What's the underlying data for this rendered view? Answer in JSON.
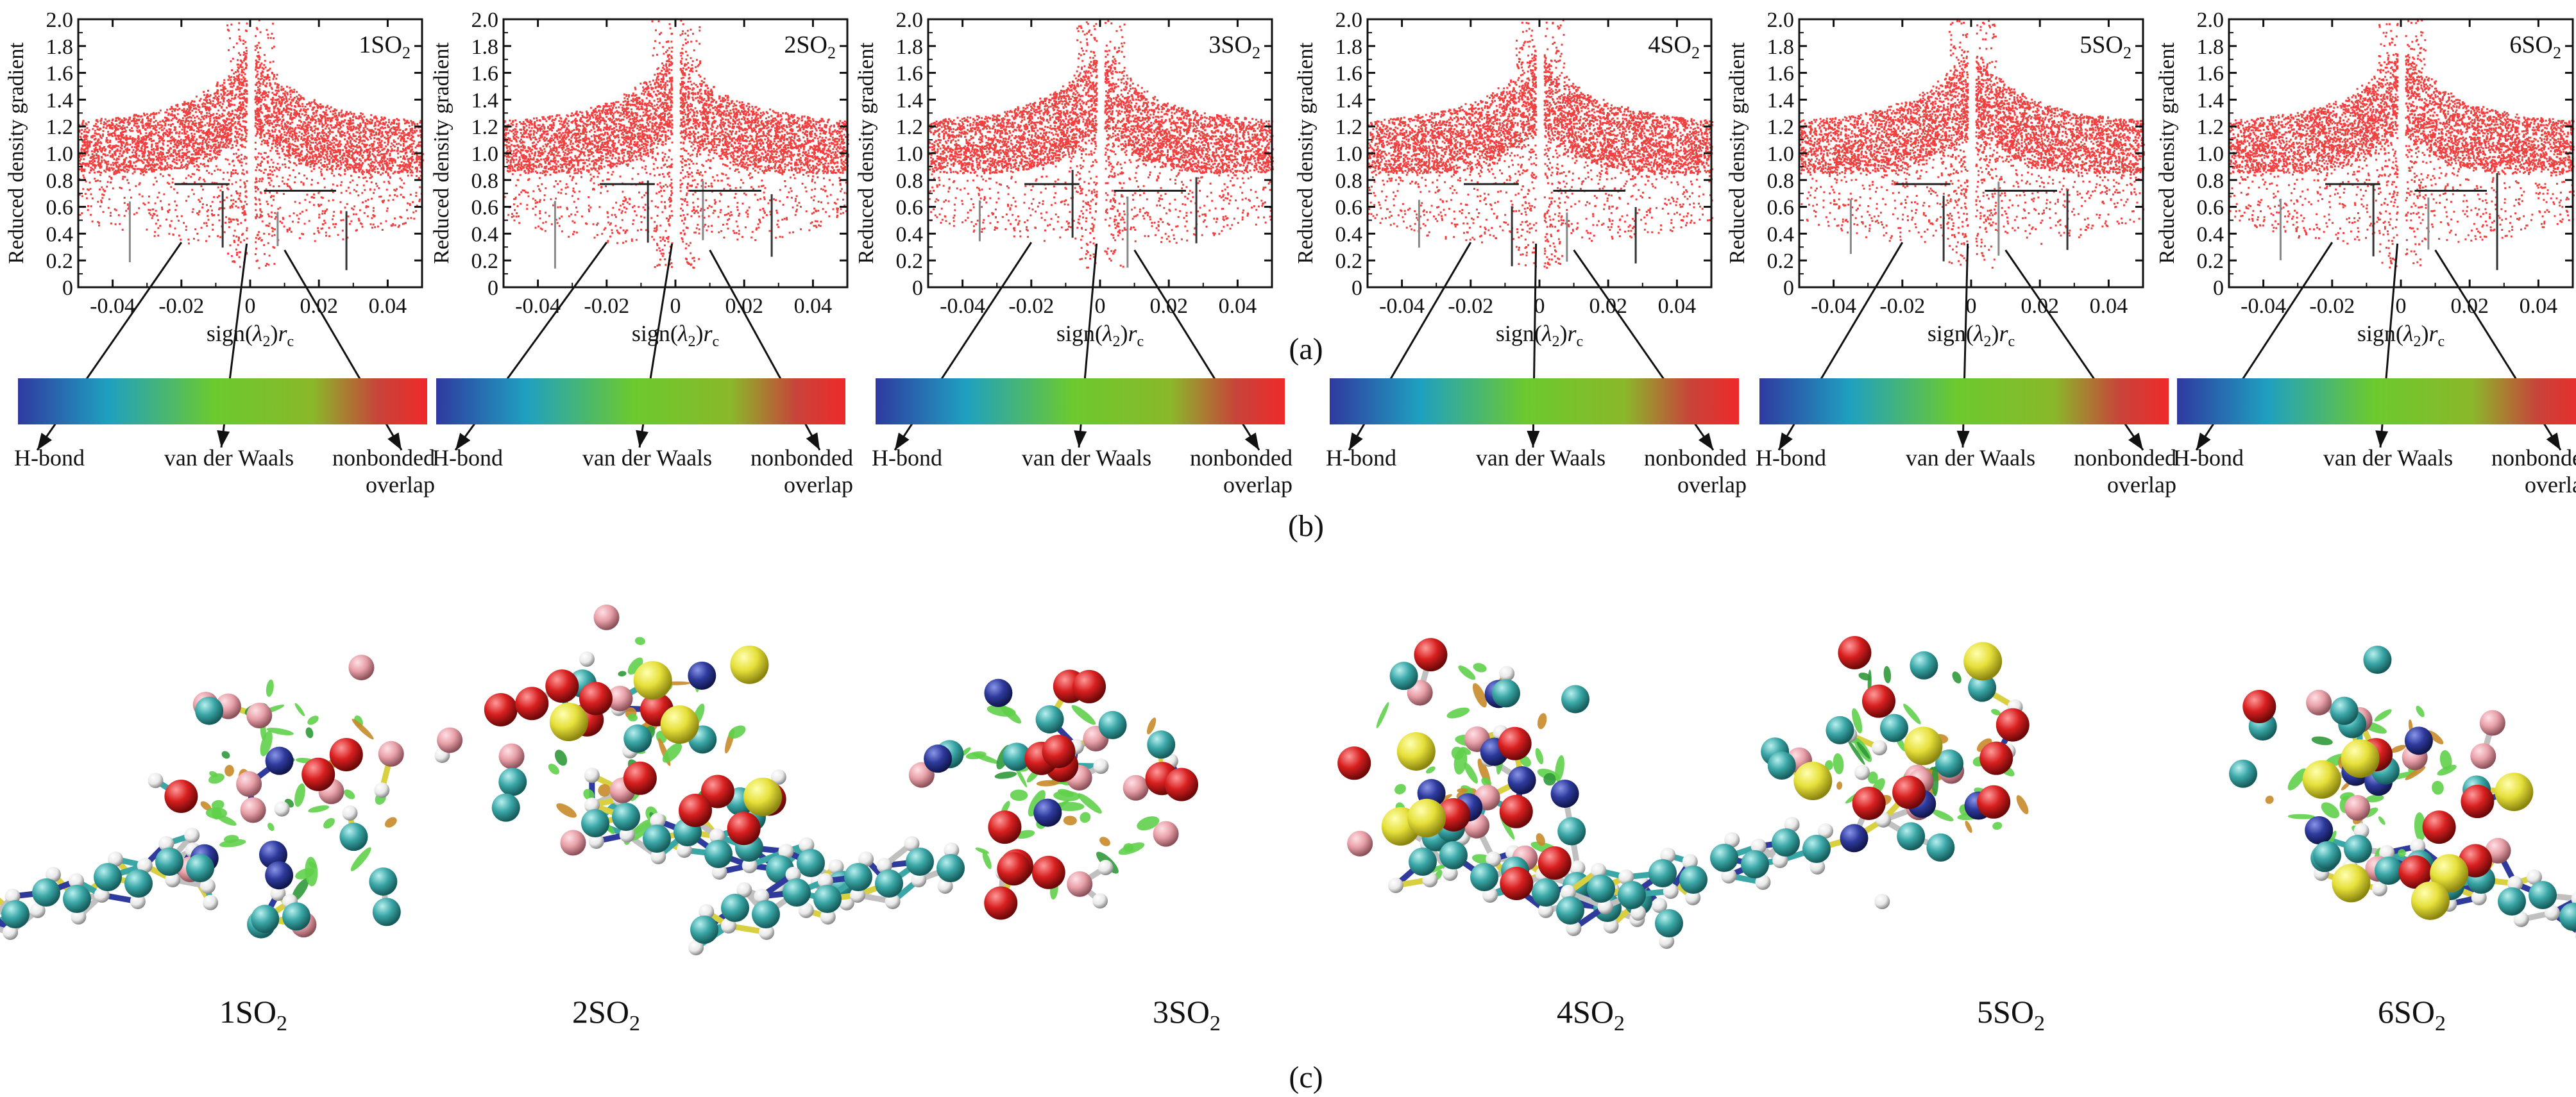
{
  "figure": {
    "label_a": "(a)",
    "label_b": "(b)",
    "label_c": "(c)"
  },
  "chart_data": [
    {
      "type": "scatter",
      "panel_label": "1SO",
      "panel_sub": "2",
      "ylabel": "Reduced density gradient",
      "xlabel_pre": "sign(",
      "xlabel_lam": "λ",
      "xlabel_sub": "2",
      "xlabel_post": ")",
      "xlabel_r": "r",
      "xlabel_rsub": "c",
      "xlim": [
        -0.05,
        0.05
      ],
      "ylim": [
        0,
        2.0
      ],
      "xticks": [
        "-0.04",
        "-0.02",
        "0",
        "0.02",
        "0.04"
      ],
      "yticks": [
        "0",
        "0.2",
        "0.4",
        "0.6",
        "0.8",
        "1.0",
        "1.2",
        "1.4",
        "1.6",
        "1.8",
        "2.0"
      ],
      "color": "#ee2a2a"
    },
    {
      "type": "scatter",
      "panel_label": "2SO",
      "panel_sub": "2",
      "ylabel": "Reduced density gradient",
      "xlabel_pre": "sign(",
      "xlabel_lam": "λ",
      "xlabel_sub": "2",
      "xlabel_post": ")",
      "xlabel_r": "r",
      "xlabel_rsub": "c",
      "xlim": [
        -0.05,
        0.05
      ],
      "ylim": [
        0,
        2.0
      ],
      "xticks": [
        "-0.04",
        "-0.02",
        "0",
        "0.02",
        "0.04"
      ],
      "yticks": [
        "0",
        "0.2",
        "0.4",
        "0.6",
        "0.8",
        "1.0",
        "1.2",
        "1.4",
        "1.6",
        "1.8",
        "2.0"
      ],
      "color": "#ee2a2a"
    },
    {
      "type": "scatter",
      "panel_label": "3SO",
      "panel_sub": "2",
      "ylabel": "Reduced density gradient",
      "xlabel_pre": "sign(",
      "xlabel_lam": "λ",
      "xlabel_sub": "2",
      "xlabel_post": ")",
      "xlabel_r": "r",
      "xlabel_rsub": "c",
      "xlim": [
        -0.05,
        0.05
      ],
      "ylim": [
        0,
        2.0
      ],
      "xticks": [
        "-0.04",
        "-0.02",
        "0",
        "0.02",
        "0.04"
      ],
      "yticks": [
        "0",
        "0.2",
        "0.4",
        "0.6",
        "0.8",
        "1.0",
        "1.2",
        "1.4",
        "1.6",
        "1.8",
        "2.0"
      ],
      "color": "#ee2a2a"
    },
    {
      "type": "scatter",
      "panel_label": "4SO",
      "panel_sub": "2",
      "ylabel": "Reduced density gradient",
      "xlabel_pre": "sign(",
      "xlabel_lam": "λ",
      "xlabel_sub": "2",
      "xlabel_post": ")",
      "xlabel_r": "r",
      "xlabel_rsub": "c",
      "xlim": [
        -0.05,
        0.05
      ],
      "ylim": [
        0,
        2.0
      ],
      "xticks": [
        "-0.04",
        "-0.02",
        "0",
        "0.02",
        "0.04"
      ],
      "yticks": [
        "0",
        "0.2",
        "0.4",
        "0.6",
        "0.8",
        "1.0",
        "1.2",
        "1.4",
        "1.6",
        "1.8",
        "2.0"
      ],
      "color": "#ee2a2a"
    },
    {
      "type": "scatter",
      "panel_label": "5SO",
      "panel_sub": "2",
      "ylabel": "Reduced density gradient",
      "xlabel_pre": "sign(",
      "xlabel_lam": "λ",
      "xlabel_sub": "2",
      "xlabel_post": ")",
      "xlabel_r": "r",
      "xlabel_rsub": "c",
      "xlim": [
        -0.05,
        0.05
      ],
      "ylim": [
        0,
        2.0
      ],
      "xticks": [
        "-0.04",
        "-0.02",
        "0",
        "0.02",
        "0.04"
      ],
      "yticks": [
        "0",
        "0.2",
        "0.4",
        "0.6",
        "0.8",
        "1.0",
        "1.2",
        "1.4",
        "1.6",
        "1.8",
        "2.0"
      ],
      "color": "#ee2a2a"
    },
    {
      "type": "scatter",
      "panel_label": "6SO",
      "panel_sub": "2",
      "ylabel": "Reduced density gradient",
      "xlabel_pre": "sign(",
      "xlabel_lam": "λ",
      "xlabel_sub": "2",
      "xlabel_post": ")",
      "xlabel_r": "r",
      "xlabel_rsub": "c",
      "xlim": [
        -0.05,
        0.05
      ],
      "ylim": [
        0,
        2.0
      ],
      "xticks": [
        "-0.04",
        "-0.02",
        "0",
        "0.02",
        "0.04"
      ],
      "yticks": [
        "0",
        "0.2",
        "0.4",
        "0.6",
        "0.8",
        "1.0",
        "1.2",
        "1.4",
        "1.6",
        "1.8",
        "2.0"
      ],
      "color": "#ee2a2a"
    }
  ],
  "colorbar": {
    "labels": {
      "hbond": "H-bond",
      "vdw": "van der Waals",
      "overlap_1": "nonbonded",
      "overlap_2": "overlap"
    },
    "colors": [
      "#2f3aa0",
      "#1fa0c0",
      "#6cc92e",
      "#8ab82a",
      "#c7443a",
      "#ee2a2a"
    ]
  },
  "structures": [
    {
      "label": "1SO",
      "sub": "2"
    },
    {
      "label": "2SO",
      "sub": "2"
    },
    {
      "label": "3SO",
      "sub": "2"
    },
    {
      "label": "4SO",
      "sub": "2"
    },
    {
      "label": "5SO",
      "sub": "2"
    },
    {
      "label": "6SO",
      "sub": "2"
    }
  ],
  "atom_colors": {
    "sulfur": "#e6e03a",
    "oxygen": "#d81f1f",
    "carbon": "#3aa6a6",
    "nitrogen": "#2e3a9c",
    "hydrogen": "#f0f0f0",
    "fluorine": "#e8a0a8",
    "isosurface": "#5fd04a",
    "isosurface_2": "#c98a2a"
  }
}
